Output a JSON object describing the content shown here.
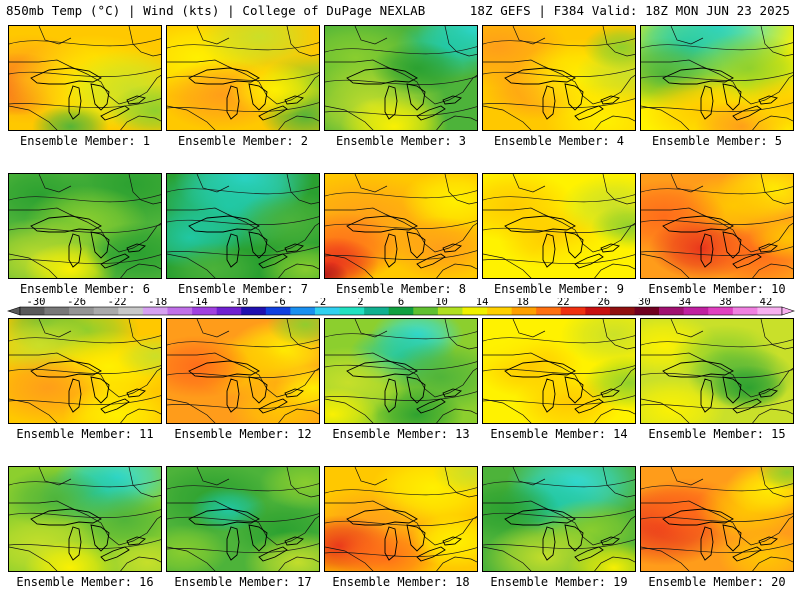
{
  "header": {
    "left": "850mb Temp (°C) | Wind (kts) | College of DuPage NEXLAB",
    "right": "18Z GEFS | F384 Valid: 18Z MON JUN 23 2025"
  },
  "colors": {
    "cyan": "#33dde0",
    "teal": "#20c9a8",
    "green_dark": "#2aa030",
    "green": "#4db33a",
    "green_light": "#8ccf2e",
    "yellowgreen": "#c9e02a",
    "yellow": "#fff200",
    "gold": "#ffc800",
    "orange": "#ff9c1a",
    "orange_red": "#ff6a1a",
    "red": "#e8301c",
    "dark_red": "#b41818"
  },
  "colorbar": {
    "tick_labels": [
      "-30",
      "-26",
      "-22",
      "-18",
      "-14",
      "-10",
      "-6",
      "-2",
      "2",
      "6",
      "10",
      "14",
      "18",
      "22",
      "26",
      "30",
      "34",
      "38",
      "42"
    ],
    "bins": [
      "#5a5a5a",
      "#787878",
      "#949494",
      "#aaaaaa",
      "#c8c8c8",
      "#d6a0f0",
      "#c070e8",
      "#a040e0",
      "#7020d0",
      "#2010b0",
      "#1040e0",
      "#1a90f0",
      "#30d0f0",
      "#20e0c0",
      "#10b090",
      "#10a040",
      "#60c030",
      "#b0e020",
      "#f0f000",
      "#ffd000",
      "#ffa000",
      "#ff7010",
      "#f03010",
      "#c81010",
      "#901010",
      "#700020",
      "#a01070",
      "#c020a0",
      "#e040c0",
      "#f080e0",
      "#f8b0f0"
    ]
  },
  "panels": [
    {
      "label": "Ensemble Member: 1",
      "bg": "#ffc800",
      "blobs": [
        [
          "#e8301c",
          0.05,
          0.55,
          0.35
        ],
        [
          "#ff9c1a",
          0.12,
          0.5,
          0.5
        ],
        [
          "#fff200",
          0.55,
          0.55,
          0.55
        ],
        [
          "#c9e02a",
          0.8,
          0.6,
          0.45
        ],
        [
          "#8ccf2e",
          0.95,
          0.8,
          0.3
        ],
        [
          "#4db33a",
          0.4,
          0.95,
          0.25
        ]
      ]
    },
    {
      "label": "Ensemble Member: 2",
      "bg": "#ffc800",
      "blobs": [
        [
          "#fff200",
          0.2,
          0.3,
          0.45
        ],
        [
          "#c9e02a",
          0.6,
          0.1,
          0.4
        ],
        [
          "#8ccf2e",
          0.95,
          0.55,
          0.35
        ],
        [
          "#4db33a",
          0.9,
          0.85,
          0.3
        ],
        [
          "#ff9c1a",
          0.35,
          0.65,
          0.4
        ],
        [
          "#fff200",
          0.7,
          0.6,
          0.3
        ]
      ]
    },
    {
      "label": "Ensemble Member: 3",
      "bg": "#4db33a",
      "blobs": [
        [
          "#33dde0",
          0.95,
          0.05,
          0.35
        ],
        [
          "#20c9a8",
          0.8,
          0.2,
          0.35
        ],
        [
          "#8ccf2e",
          0.2,
          0.3,
          0.45
        ],
        [
          "#c9e02a",
          0.3,
          0.75,
          0.5
        ],
        [
          "#fff200",
          0.45,
          0.95,
          0.35
        ],
        [
          "#2aa030",
          0.6,
          0.4,
          0.3
        ]
      ]
    },
    {
      "label": "Ensemble Member: 4",
      "bg": "#ffc800",
      "blobs": [
        [
          "#ff9c1a",
          0.1,
          0.2,
          0.45
        ],
        [
          "#ff9c1a",
          0.35,
          0.6,
          0.35
        ],
        [
          "#fff200",
          0.65,
          0.5,
          0.45
        ],
        [
          "#c9e02a",
          0.95,
          0.45,
          0.35
        ],
        [
          "#8ccf2e",
          0.9,
          0.2,
          0.25
        ],
        [
          "#fff200",
          0.8,
          0.9,
          0.4
        ]
      ]
    },
    {
      "label": "Ensemble Member: 5",
      "bg": "#fff200",
      "blobs": [
        [
          "#33dde0",
          0.5,
          0.0,
          0.55
        ],
        [
          "#20c9a8",
          0.3,
          0.2,
          0.5
        ],
        [
          "#4db33a",
          0.15,
          0.45,
          0.4
        ],
        [
          "#8ccf2e",
          0.7,
          0.4,
          0.4
        ],
        [
          "#ffc800",
          0.4,
          0.8,
          0.4
        ],
        [
          "#ff9c1a",
          0.65,
          0.95,
          0.3
        ],
        [
          "#ffc800",
          0.95,
          0.75,
          0.35
        ]
      ]
    },
    {
      "label": "Ensemble Member: 6",
      "bg": "#4db33a",
      "blobs": [
        [
          "#2aa030",
          0.8,
          0.1,
          0.45
        ],
        [
          "#2aa030",
          0.2,
          0.2,
          0.35
        ],
        [
          "#8ccf2e",
          0.5,
          0.45,
          0.4
        ],
        [
          "#c9e02a",
          0.2,
          0.8,
          0.45
        ],
        [
          "#fff200",
          0.4,
          0.9,
          0.3
        ],
        [
          "#2aa030",
          0.85,
          0.75,
          0.35
        ]
      ]
    },
    {
      "label": "Ensemble Member: 7",
      "bg": "#2aa030",
      "blobs": [
        [
          "#33dde0",
          0.5,
          0.05,
          0.45
        ],
        [
          "#20c9a8",
          0.4,
          0.3,
          0.5
        ],
        [
          "#20c9a8",
          0.15,
          0.6,
          0.35
        ],
        [
          "#4db33a",
          0.8,
          0.45,
          0.35
        ],
        [
          "#8ccf2e",
          0.9,
          0.9,
          0.3
        ],
        [
          "#4db33a",
          0.3,
          0.9,
          0.3
        ]
      ]
    },
    {
      "label": "Ensemble Member: 8",
      "bg": "#ffc800",
      "blobs": [
        [
          "#ff9c1a",
          0.25,
          0.45,
          0.55
        ],
        [
          "#ff6a1a",
          0.1,
          0.7,
          0.4
        ],
        [
          "#e8301c",
          0.05,
          0.85,
          0.3
        ],
        [
          "#b41818",
          0.0,
          0.95,
          0.15
        ],
        [
          "#fff200",
          0.85,
          0.25,
          0.35
        ],
        [
          "#ff9c1a",
          0.75,
          0.7,
          0.35
        ]
      ]
    },
    {
      "label": "Ensemble Member: 9",
      "bg": "#fff200",
      "blobs": [
        [
          "#ffc800",
          0.2,
          0.3,
          0.4
        ],
        [
          "#ffc800",
          0.45,
          0.6,
          0.35
        ],
        [
          "#c9e02a",
          0.85,
          0.3,
          0.35
        ],
        [
          "#8ccf2e",
          0.95,
          0.5,
          0.25
        ],
        [
          "#fff200",
          0.7,
          0.85,
          0.4
        ]
      ]
    },
    {
      "label": "Ensemble Member: 10",
      "bg": "#ff9c1a",
      "blobs": [
        [
          "#fff200",
          0.85,
          0.15,
          0.35
        ],
        [
          "#ffc800",
          0.6,
          0.3,
          0.35
        ],
        [
          "#ff6a1a",
          0.15,
          0.4,
          0.4
        ],
        [
          "#e8301c",
          0.4,
          0.7,
          0.35
        ],
        [
          "#ff6a1a",
          0.75,
          0.75,
          0.35
        ],
        [
          "#ffc800",
          0.95,
          0.6,
          0.25
        ]
      ]
    },
    {
      "label": "Ensemble Member: 11",
      "bg": "#ffc800",
      "blobs": [
        [
          "#4db33a",
          0.25,
          0.05,
          0.3
        ],
        [
          "#8ccf2e",
          0.5,
          0.1,
          0.35
        ],
        [
          "#c9e02a",
          0.2,
          0.25,
          0.35
        ],
        [
          "#fff200",
          0.65,
          0.45,
          0.4
        ],
        [
          "#ff9c1a",
          0.25,
          0.65,
          0.4
        ],
        [
          "#fff200",
          0.7,
          0.9,
          0.35
        ],
        [
          "#c9e02a",
          0.95,
          0.35,
          0.25
        ]
      ]
    },
    {
      "label": "Ensemble Member: 12",
      "bg": "#ff9c1a",
      "blobs": [
        [
          "#fff200",
          0.75,
          0.3,
          0.35
        ],
        [
          "#8ccf2e",
          0.9,
          0.05,
          0.25
        ],
        [
          "#ffc800",
          0.5,
          0.45,
          0.35
        ],
        [
          "#ff6a1a",
          0.2,
          0.45,
          0.35
        ],
        [
          "#ffc800",
          0.75,
          0.85,
          0.35
        ],
        [
          "#fff200",
          0.95,
          0.65,
          0.25
        ]
      ]
    },
    {
      "label": "Ensemble Member: 13",
      "bg": "#8ccf2e",
      "blobs": [
        [
          "#33dde0",
          0.6,
          0.15,
          0.3
        ],
        [
          "#20c9a8",
          0.5,
          0.35,
          0.35
        ],
        [
          "#4db33a",
          0.75,
          0.55,
          0.4
        ],
        [
          "#2aa030",
          0.6,
          0.9,
          0.3
        ],
        [
          "#c9e02a",
          0.15,
          0.6,
          0.4
        ],
        [
          "#fff200",
          0.05,
          0.9,
          0.3
        ]
      ]
    },
    {
      "label": "Ensemble Member: 14",
      "bg": "#fff200",
      "blobs": [
        [
          "#ffc800",
          0.3,
          0.45,
          0.35
        ],
        [
          "#ffc800",
          0.55,
          0.8,
          0.35
        ],
        [
          "#c9e02a",
          0.85,
          0.15,
          0.35
        ],
        [
          "#8ccf2e",
          0.95,
          0.6,
          0.3
        ],
        [
          "#fff200",
          0.1,
          0.2,
          0.35
        ]
      ]
    },
    {
      "label": "Ensemble Member: 15",
      "bg": "#c9e02a",
      "blobs": [
        [
          "#fff200",
          0.15,
          0.25,
          0.35
        ],
        [
          "#8ccf2e",
          0.55,
          0.35,
          0.35
        ],
        [
          "#4db33a",
          0.65,
          0.55,
          0.35
        ],
        [
          "#2aa030",
          0.7,
          0.65,
          0.25
        ],
        [
          "#fff200",
          0.2,
          0.85,
          0.35
        ],
        [
          "#c9e02a",
          0.95,
          0.15,
          0.25
        ]
      ]
    },
    {
      "label": "Ensemble Member: 16",
      "bg": "#8ccf2e",
      "blobs": [
        [
          "#33dde0",
          0.7,
          0.1,
          0.4
        ],
        [
          "#20c9a8",
          0.55,
          0.25,
          0.35
        ],
        [
          "#4db33a",
          0.3,
          0.3,
          0.35
        ],
        [
          "#4db33a",
          0.75,
          0.5,
          0.35
        ],
        [
          "#c9e02a",
          0.2,
          0.75,
          0.4
        ],
        [
          "#fff200",
          0.4,
          0.95,
          0.3
        ],
        [
          "#c9e02a",
          0.9,
          0.9,
          0.3
        ]
      ]
    },
    {
      "label": "Ensemble Member: 17",
      "bg": "#4db33a",
      "blobs": [
        [
          "#2aa030",
          0.3,
          0.3,
          0.4
        ],
        [
          "#20c9a8",
          0.4,
          0.4,
          0.25
        ],
        [
          "#2aa030",
          0.75,
          0.6,
          0.35
        ],
        [
          "#8ccf2e",
          0.9,
          0.15,
          0.3
        ],
        [
          "#c9e02a",
          0.85,
          0.9,
          0.35
        ],
        [
          "#8ccf2e",
          0.1,
          0.8,
          0.3
        ]
      ]
    },
    {
      "label": "Ensemble Member: 18",
      "bg": "#ffc800",
      "blobs": [
        [
          "#ff9c1a",
          0.3,
          0.55,
          0.45
        ],
        [
          "#e8301c",
          0.1,
          0.75,
          0.35
        ],
        [
          "#ff6a1a",
          0.4,
          0.85,
          0.35
        ],
        [
          "#fff200",
          0.7,
          0.2,
          0.4
        ],
        [
          "#c9e02a",
          0.95,
          0.05,
          0.25
        ],
        [
          "#fff200",
          0.85,
          0.7,
          0.3
        ]
      ]
    },
    {
      "label": "Ensemble Member: 19",
      "bg": "#4db33a",
      "blobs": [
        [
          "#33dde0",
          0.6,
          0.15,
          0.45
        ],
        [
          "#20c9a8",
          0.45,
          0.35,
          0.35
        ],
        [
          "#2aa030",
          0.15,
          0.4,
          0.35
        ],
        [
          "#8ccf2e",
          0.7,
          0.6,
          0.35
        ],
        [
          "#c9e02a",
          0.4,
          0.85,
          0.4
        ],
        [
          "#fff200",
          0.85,
          0.95,
          0.3
        ]
      ]
    },
    {
      "label": "Ensemble Member: 20",
      "bg": "#ff9c1a",
      "blobs": [
        [
          "#e8301c",
          0.15,
          0.55,
          0.45
        ],
        [
          "#ff6a1a",
          0.3,
          0.4,
          0.35
        ],
        [
          "#ffc800",
          0.7,
          0.4,
          0.35
        ],
        [
          "#fff200",
          0.85,
          0.2,
          0.3
        ],
        [
          "#8ccf2e",
          0.95,
          0.05,
          0.2
        ],
        [
          "#ffc800",
          0.8,
          0.85,
          0.3
        ]
      ]
    }
  ]
}
